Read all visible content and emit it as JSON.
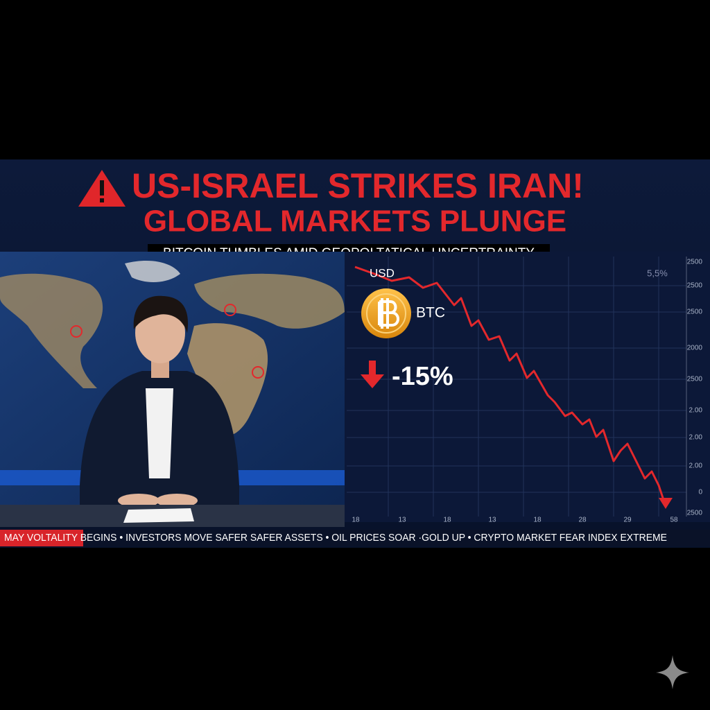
{
  "headline": {
    "line1": "US-ISRAEL STRIKES IRAN!",
    "line2": "GLOBAL MARKETS PLUNGE",
    "subtitle": "BITCOIN TUMBLES AMID GEOPOLTATICAL UNCERTRAINTY"
  },
  "chart_panel": {
    "currency": "USD",
    "asset": "BTC",
    "change": "-15%",
    "corner_label": "5,5%",
    "y_axis_labels": [
      "2500",
      "2500",
      "2500",
      "2000",
      "2500",
      "2.00",
      "2.00",
      "2.00",
      "0",
      "2500"
    ],
    "x_axis_labels": [
      "18",
      "13",
      "18",
      "13",
      "18",
      "28",
      "29",
      "58"
    ]
  },
  "ticker": "MAY VOLTALITY BEGINS • INVESTORS MOVE SAFER SAFER ASSETS • OIL PRICES SOAR ·GOLD UP • CRYPTO MARKET FEAR INDEX EXTREME"
}
